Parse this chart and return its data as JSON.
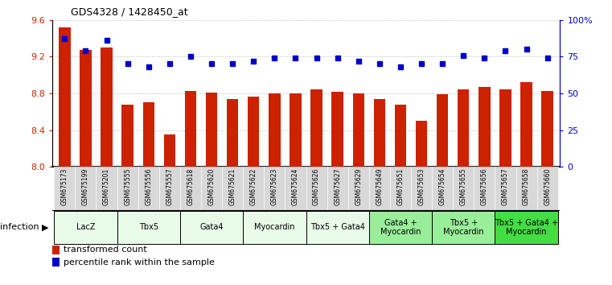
{
  "title": "GDS4328 / 1428450_at",
  "samples": [
    "GSM675173",
    "GSM675199",
    "GSM675201",
    "GSM675555",
    "GSM675556",
    "GSM675557",
    "GSM675618",
    "GSM675620",
    "GSM675621",
    "GSM675622",
    "GSM675623",
    "GSM675624",
    "GSM675626",
    "GSM675627",
    "GSM675629",
    "GSM675649",
    "GSM675651",
    "GSM675653",
    "GSM675654",
    "GSM675655",
    "GSM675656",
    "GSM675657",
    "GSM675658",
    "GSM675660"
  ],
  "bar_values": [
    9.52,
    9.27,
    9.3,
    8.68,
    8.7,
    8.35,
    8.83,
    8.81,
    8.74,
    8.76,
    8.8,
    8.8,
    8.84,
    8.82,
    8.8,
    8.74,
    8.68,
    8.5,
    8.79,
    8.84,
    8.87,
    8.84,
    8.92,
    8.83
  ],
  "percentile_values": [
    87,
    79,
    86,
    70,
    68,
    70,
    75,
    70,
    70,
    72,
    74,
    74,
    74,
    74,
    72,
    70,
    68,
    70,
    70,
    76,
    74,
    79,
    80,
    74
  ],
  "ylim_left": [
    8.0,
    9.6
  ],
  "ylim_right": [
    0,
    100
  ],
  "yticks_left": [
    8.0,
    8.4,
    8.8,
    9.2,
    9.6
  ],
  "yticks_right": [
    0,
    25,
    50,
    75,
    100
  ],
  "ytick_labels_right": [
    "0",
    "25",
    "50",
    "75",
    "100%"
  ],
  "bar_color": "#cc2200",
  "dot_color": "#0000cc",
  "groups": [
    {
      "label": "LacZ",
      "start": 0,
      "end": 3,
      "color": "#e8fae8"
    },
    {
      "label": "Tbx5",
      "start": 3,
      "end": 6,
      "color": "#e8fae8"
    },
    {
      "label": "Gata4",
      "start": 6,
      "end": 9,
      "color": "#e8fae8"
    },
    {
      "label": "Myocardin",
      "start": 9,
      "end": 12,
      "color": "#e8fae8"
    },
    {
      "label": "Tbx5 + Gata4",
      "start": 12,
      "end": 15,
      "color": "#e8fae8"
    },
    {
      "label": "Gata4 +\nMyocardin",
      "start": 15,
      "end": 18,
      "color": "#99ee99"
    },
    {
      "label": "Tbx5 +\nMyocardin",
      "start": 18,
      "end": 21,
      "color": "#99ee99"
    },
    {
      "label": "Tbx5 + Gata4 +\nMyocardin",
      "start": 21,
      "end": 24,
      "color": "#44dd44"
    }
  ],
  "infection_label": "infection",
  "legend_bar_label": "transformed count",
  "legend_dot_label": "percentile rank within the sample",
  "bg_color": "#ffffff",
  "tick_label_color_left": "#cc2200",
  "tick_label_color_right": "#0000cc",
  "grid_color": "#aaaaaa",
  "xticklabel_bg": "#d8d8d8"
}
